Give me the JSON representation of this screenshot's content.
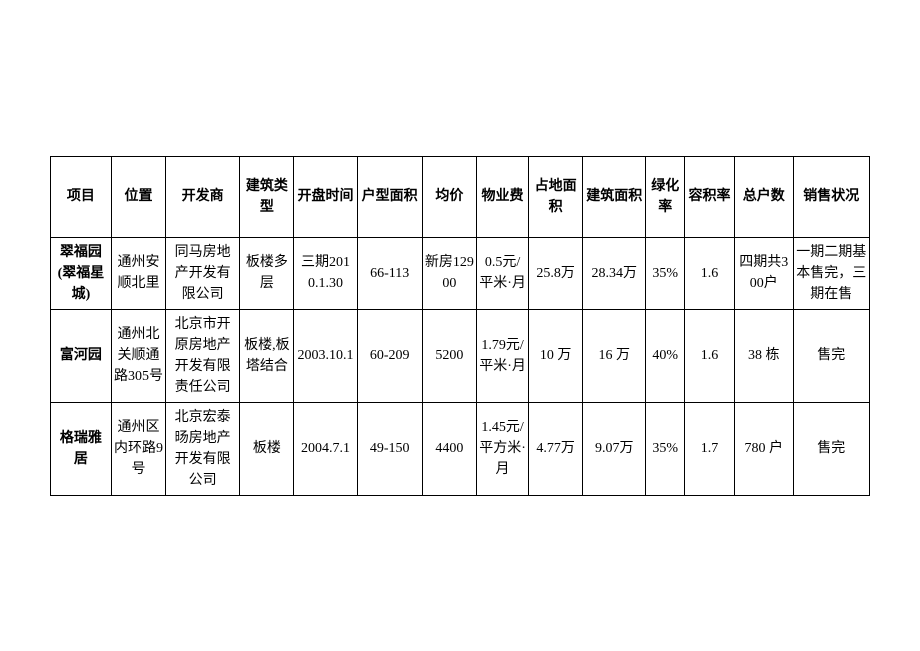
{
  "table": {
    "columns": [
      {
        "key": "project",
        "label": "项目",
        "class": "col-project"
      },
      {
        "key": "location",
        "label": "位置",
        "class": "col-location"
      },
      {
        "key": "developer",
        "label": "开发商",
        "class": "col-developer"
      },
      {
        "key": "building_type",
        "label": "建筑类型",
        "class": "col-building-type"
      },
      {
        "key": "open_time",
        "label": "开盘时间",
        "class": "col-open-time"
      },
      {
        "key": "unit_area",
        "label": "户型面积",
        "class": "col-unit-area"
      },
      {
        "key": "avg_price",
        "label": "均价",
        "class": "col-avg-price"
      },
      {
        "key": "property_fee",
        "label": "物业费",
        "class": "col-property-fee"
      },
      {
        "key": "land_area",
        "label": "占地面积",
        "class": "col-land-area"
      },
      {
        "key": "construction_area",
        "label": "建筑面积",
        "class": "col-construction-area"
      },
      {
        "key": "greening",
        "label": "绿化率",
        "class": "col-greening"
      },
      {
        "key": "plot_ratio",
        "label": "容积率",
        "class": "col-plot-ratio"
      },
      {
        "key": "total_units",
        "label": "总户数",
        "class": "col-total-units"
      },
      {
        "key": "sales_status",
        "label": "销售状况",
        "class": "col-sales-status"
      }
    ],
    "rows": [
      {
        "project": "翠福园(翠福星城)",
        "location": "通州安顺北里",
        "developer": "同马房地产开发有限公司",
        "building_type": "板楼多层",
        "open_time": "三期2010.1.30",
        "unit_area": "66-113",
        "avg_price": "新房12900",
        "property_fee": "0.5元/平米·月",
        "land_area": "25.8万",
        "construction_area": "28.34万",
        "greening": "35%",
        "plot_ratio": "1.6",
        "total_units": "四期共300户",
        "sales_status": "一期二期基本售完，三期在售"
      },
      {
        "project": "富河园",
        "location": "通州北关顺通路305号",
        "developer": "北京市开原房地产开发有限责任公司",
        "building_type": "板楼,板塔结合",
        "open_time": "2003.10.1",
        "unit_area": "60-209",
        "avg_price": "5200",
        "property_fee": "1.79元/平米·月",
        "land_area": "10 万",
        "construction_area": "16 万",
        "greening": "40%",
        "plot_ratio": "1.6",
        "total_units": "38 栋",
        "sales_status": "售完"
      },
      {
        "project": "格瑞雅居",
        "location": "通州区 内环路9 号",
        "developer": "北京宏泰旸房地产开发有限公司",
        "building_type": "板楼",
        "open_time": "2004.7.1",
        "unit_area": "49-150",
        "avg_price": "4400",
        "property_fee": "1.45元/平方米·月",
        "land_area": "4.77万",
        "construction_area": "9.07万",
        "greening": "35%",
        "plot_ratio": "1.7",
        "total_units": "780 户",
        "sales_status": "售完"
      }
    ],
    "styling": {
      "border_color": "#000000",
      "border_width": 1.5,
      "background_color": "#ffffff",
      "text_color": "#000000",
      "font_family": "SimSun",
      "header_fontsize": 14,
      "cell_fontsize": 14,
      "header_fontweight": "bold",
      "project_col_fontweight": "bold"
    }
  }
}
